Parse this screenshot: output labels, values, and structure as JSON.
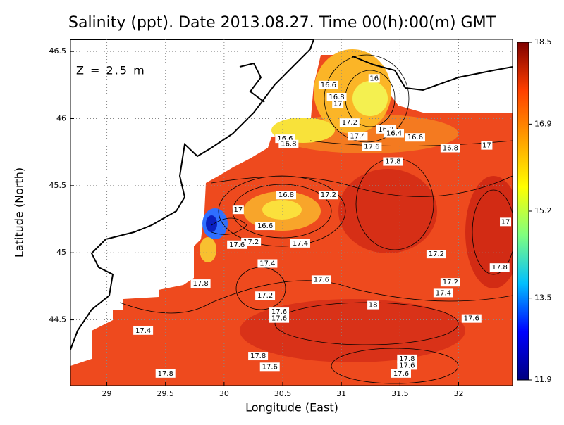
{
  "chart_data": {
    "type": "contour-map",
    "title": "Salinity (ppt). Date 2013.08.27. Time 00(h):00(m) GMT",
    "annotation": "Z = 2.5 m",
    "x_label": "Longitude (East)",
    "y_label": "Latitude (North)",
    "xlim": [
      28.69,
      32.46
    ],
    "ylim": [
      44.01,
      46.59
    ],
    "xticks": [
      29,
      29.5,
      30,
      30.5,
      31,
      31.5,
      32
    ],
    "yticks": [
      44.5,
      45,
      45.5,
      46,
      46.5
    ],
    "grid": true,
    "colorbar": {
      "lim": [
        11.9,
        18.5
      ],
      "ticks": [
        11.9,
        13.5,
        15.2,
        16.9,
        18.5
      ],
      "colors": [
        "#00007f",
        "#0000ff",
        "#00bfff",
        "#7fff7f",
        "#ffff00",
        "#ff9f00",
        "#ff3f00",
        "#7f0000"
      ]
    },
    "contour_labels": {
      "x": [
        31.28,
        30.89,
        30.96,
        30.97,
        31.07,
        31.38,
        31.45,
        31.63,
        31.14,
        31.93,
        32.24,
        31.26,
        30.52,
        30.55,
        31.44,
        30.53,
        30.89,
        30.12,
        30.35,
        30.23,
        30.11,
        30.65,
        30.37,
        29.8,
        30.35,
        30.83,
        31.81,
        32.35,
        31.93,
        31.87,
        32.4,
        31.27,
        30.47,
        30.47,
        32.11,
        29.31,
        30.29,
        30.39,
        31.56,
        31.56,
        31.51,
        29.5
      ],
      "y": [
        46.3,
        46.25,
        46.16,
        46.11,
        45.97,
        45.92,
        45.89,
        45.86,
        45.87,
        45.78,
        45.8,
        45.79,
        45.85,
        45.81,
        45.68,
        45.43,
        45.43,
        45.32,
        45.2,
        45.08,
        45.06,
        45.07,
        44.92,
        44.77,
        44.68,
        44.8,
        44.99,
        44.89,
        44.78,
        44.7,
        45.23,
        44.61,
        44.56,
        44.51,
        44.51,
        44.42,
        44.23,
        44.15,
        44.21,
        44.16,
        44.1,
        44.1
      ],
      "values": [
        16,
        16.6,
        16.8,
        17,
        17.2,
        16.2,
        16.4,
        16.6,
        17.4,
        16.8,
        17,
        17.6,
        16.6,
        16.8,
        17.8,
        16.8,
        17.2,
        17,
        16.6,
        17.2,
        17.6,
        17.4,
        17.4,
        17.8,
        17.2,
        17.6,
        17.2,
        17.8,
        17.2,
        17.4,
        17,
        18,
        17.6,
        17.6,
        17.6,
        17.4,
        17.8,
        17.6,
        17.8,
        17.6,
        17.6,
        17.8
      ]
    }
  }
}
